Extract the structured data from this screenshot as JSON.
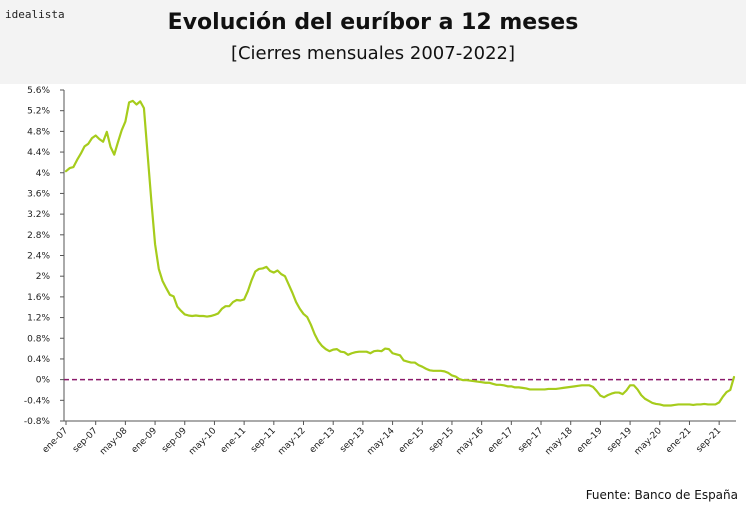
{
  "brand": "idealista",
  "source": "Fuente: Banco de España",
  "chart_data": {
    "type": "line",
    "title": "Evolución del euríbor a 12 meses",
    "subtitle": "[Cierres mensuales 2007-2022]",
    "ylim": [
      -0.8,
      5.6
    ],
    "y_ticks": [
      5.6,
      5.2,
      4.8,
      4.4,
      4.0,
      3.6,
      3.2,
      2.8,
      2.4,
      2.0,
      1.6,
      1.2,
      0.8,
      0.4,
      0.0,
      -0.4,
      -0.8
    ],
    "y_tick_labels": [
      "5.6%",
      "5.2%",
      "4.8%",
      "4.4%",
      "4%",
      "3.6%",
      "3.2%",
      "2.8%",
      "2.4%",
      "2%",
      "1.6%",
      "1.2%",
      "0.8%",
      "0.4%",
      "0%",
      "-0.4%",
      "-0.8%"
    ],
    "x_tick_labels": [
      "ene-07",
      "sep-07",
      "may-08",
      "ene-09",
      "sep-09",
      "may-10",
      "ene-11",
      "sep-11",
      "may-12",
      "ene-13",
      "sep-13",
      "may-14",
      "ene-15",
      "sep-15",
      "may-16",
      "ene-17",
      "sep-17",
      "may-18",
      "ene-19",
      "sep-19",
      "may-20",
      "ene-21",
      "sep-21"
    ],
    "x_start": "ene-07",
    "x_end": "ene-22",
    "grid": false,
    "reference_line": {
      "y": 0,
      "style": "dashed",
      "color": "#8b1a6b"
    },
    "series": [
      {
        "color": "#a6cc1c",
        "values": [
          4.03,
          4.09,
          4.11,
          4.25,
          4.37,
          4.51,
          4.56,
          4.67,
          4.72,
          4.65,
          4.6,
          4.79,
          4.5,
          4.35,
          4.59,
          4.82,
          4.99,
          5.36,
          5.39,
          5.32,
          5.38,
          5.25,
          4.35,
          3.45,
          2.62,
          2.14,
          1.91,
          1.77,
          1.64,
          1.61,
          1.41,
          1.33,
          1.26,
          1.24,
          1.23,
          1.24,
          1.23,
          1.23,
          1.22,
          1.23,
          1.25,
          1.28,
          1.37,
          1.42,
          1.42,
          1.5,
          1.54,
          1.53,
          1.55,
          1.71,
          1.92,
          2.09,
          2.14,
          2.15,
          2.18,
          2.1,
          2.07,
          2.11,
          2.04,
          2.0,
          1.84,
          1.68,
          1.5,
          1.37,
          1.27,
          1.21,
          1.06,
          0.88,
          0.74,
          0.65,
          0.59,
          0.55,
          0.58,
          0.59,
          0.54,
          0.53,
          0.48,
          0.51,
          0.53,
          0.54,
          0.54,
          0.54,
          0.51,
          0.55,
          0.56,
          0.55,
          0.6,
          0.59,
          0.51,
          0.49,
          0.47,
          0.37,
          0.35,
          0.33,
          0.33,
          0.28,
          0.25,
          0.21,
          0.18,
          0.17,
          0.17,
          0.17,
          0.16,
          0.13,
          0.08,
          0.06,
          0.01,
          -0.01,
          -0.01,
          -0.02,
          -0.03,
          -0.04,
          -0.05,
          -0.06,
          -0.06,
          -0.08,
          -0.1,
          -0.1,
          -0.11,
          -0.13,
          -0.13,
          -0.15,
          -0.15,
          -0.16,
          -0.17,
          -0.19,
          -0.19,
          -0.19,
          -0.19,
          -0.19,
          -0.18,
          -0.18,
          -0.18,
          -0.17,
          -0.16,
          -0.15,
          -0.14,
          -0.13,
          -0.12,
          -0.11,
          -0.11,
          -0.11,
          -0.14,
          -0.22,
          -0.31,
          -0.34,
          -0.3,
          -0.27,
          -0.25,
          -0.25,
          -0.28,
          -0.21,
          -0.11,
          -0.11,
          -0.19,
          -0.3,
          -0.37,
          -0.41,
          -0.45,
          -0.47,
          -0.48,
          -0.5,
          -0.5,
          -0.5,
          -0.49,
          -0.48,
          -0.48,
          -0.48,
          -0.48,
          -0.49,
          -0.48,
          -0.48,
          -0.47,
          -0.48,
          -0.48,
          -0.48,
          -0.44,
          -0.33,
          -0.24,
          -0.2,
          0.05
        ]
      }
    ]
  }
}
